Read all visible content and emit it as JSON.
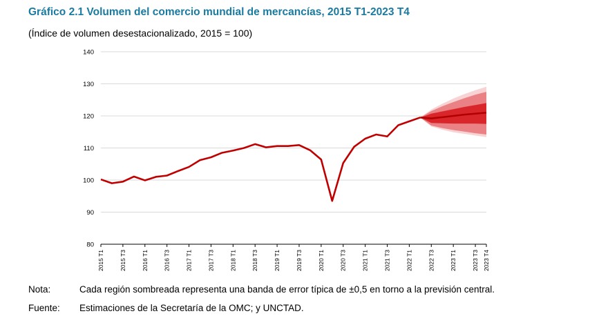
{
  "title": "Gráfico 2.1 Volumen del comercio mundial de mercancías, 2015 T1-2023 T4",
  "subtitle": "(Índice de volumen desestacionalizado, 2015 = 100)",
  "note": {
    "label": "Nota:",
    "text": "Cada región sombreada representa una banda de error típica de ±0,5 en torno a la previsión central."
  },
  "source": {
    "label": "Fuente:",
    "text": "Estimaciones de la Secretaría de la OMC; y UNCTAD."
  },
  "colors": {
    "line": "#c00000",
    "band1": "#d9262b",
    "band2": "#ea8184",
    "band3": "#f7d3d4",
    "grid": "#d9d9d9",
    "title": "#1a7aa0"
  },
  "chart_data": {
    "type": "line",
    "title": "Gráfico 2.1 Volumen del comercio mundial de mercancías, 2015 T1-2023 T4",
    "ylabel": "",
    "xlabel": "",
    "ylim": [
      80,
      140
    ],
    "yticks": [
      80,
      90,
      100,
      110,
      120,
      130,
      140
    ],
    "grid": true,
    "x_tick_labels": [
      "2015 T1",
      "2015 T3",
      "2016 T1",
      "2016 T3",
      "2017 T1",
      "2017 T3",
      "2018 T1",
      "2018 T3",
      "2019 T1",
      "2019 T3",
      "2020 T1",
      "2020 T3",
      "2021 T1",
      "2021 T3",
      "2022 T1",
      "2022 T3",
      "2023 T1",
      "2023 T3",
      "2023 T4"
    ],
    "quarters": [
      "2015 T1",
      "2015 T2",
      "2015 T3",
      "2015 T4",
      "2016 T1",
      "2016 T2",
      "2016 T3",
      "2016 T4",
      "2017 T1",
      "2017 T2",
      "2017 T3",
      "2017 T4",
      "2018 T1",
      "2018 T2",
      "2018 T3",
      "2018 T4",
      "2019 T1",
      "2019 T2",
      "2019 T3",
      "2019 T4",
      "2020 T1",
      "2020 T2",
      "2020 T3",
      "2020 T4",
      "2021 T1",
      "2021 T2",
      "2021 T3",
      "2021 T4",
      "2022 T1",
      "2022 T2",
      "2022 T3",
      "2022 T4",
      "2023 T1",
      "2023 T2",
      "2023 T3",
      "2023 T4"
    ],
    "actual": [
      100.2,
      99.0,
      99.5,
      101.1,
      99.9,
      101.0,
      101.4,
      102.8,
      104.1,
      106.2,
      107.1,
      108.5,
      109.2,
      110.0,
      111.2,
      110.2,
      110.6,
      110.6,
      110.9,
      109.3,
      106.4,
      93.5,
      105.3,
      110.4,
      112.9,
      114.2,
      113.6,
      117.1,
      118.3,
      119.5
    ],
    "forecast": {
      "quarters": [
        "2022 T2",
        "2022 T3",
        "2022 T4",
        "2023 T1",
        "2023 T2",
        "2023 T3",
        "2023 T4"
      ],
      "central": [
        119.5,
        119.2,
        119.6,
        120.0,
        120.4,
        120.7,
        121.0
      ],
      "bands": [
        {
          "level": 1,
          "lower": [
            119.5,
            117.8,
            117.7,
            117.6,
            117.6,
            117.6,
            117.5
          ],
          "upper": [
            119.5,
            120.7,
            121.4,
            122.1,
            122.8,
            123.4,
            124.0
          ]
        },
        {
          "level": 2,
          "lower": [
            119.5,
            117.0,
            116.2,
            115.6,
            115.1,
            114.6,
            114.2
          ],
          "upper": [
            119.5,
            121.5,
            123.0,
            124.3,
            125.5,
            126.6,
            127.5
          ]
        },
        {
          "level": 3,
          "lower": [
            119.5,
            116.7,
            115.7,
            114.9,
            114.4,
            113.9,
            113.4
          ],
          "upper": [
            119.5,
            122.0,
            123.8,
            125.4,
            126.8,
            128.0,
            129.1
          ]
        }
      ]
    }
  }
}
